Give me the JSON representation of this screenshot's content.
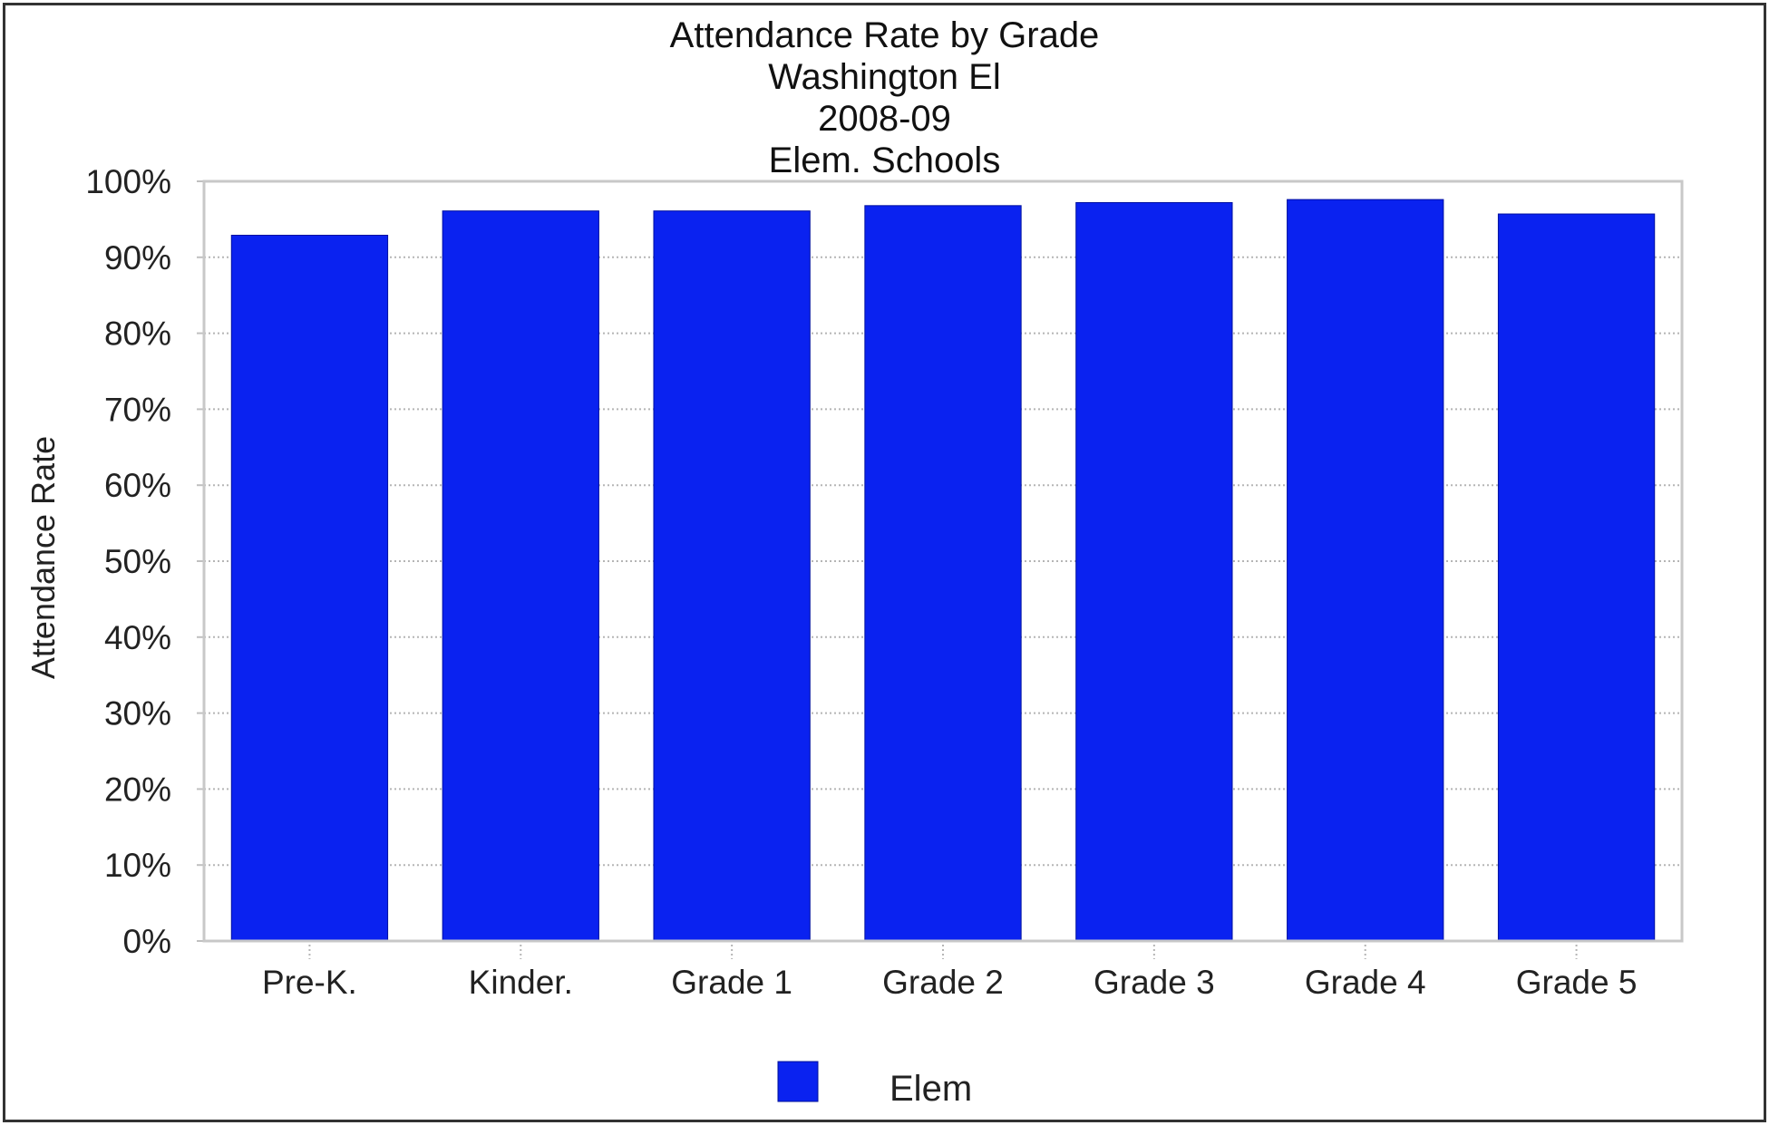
{
  "chart_data": {
    "type": "bar",
    "title": "Attendance Rate by Grade",
    "subtitles": [
      "Washington El",
      "2008-09",
      "Elem. Schools"
    ],
    "ylabel": "Attendance Rate",
    "xlabel": "",
    "categories": [
      "Pre-K.",
      "Kinder.",
      "Grade 1",
      "Grade 2",
      "Grade 3",
      "Grade 4",
      "Grade 5"
    ],
    "series": [
      {
        "name": "Elem",
        "color": "#0a22f0",
        "values": [
          92.9,
          96.1,
          96.1,
          96.8,
          97.2,
          97.6,
          95.7
        ]
      }
    ],
    "ylim": [
      0,
      100
    ],
    "yticks": [
      0,
      10,
      20,
      30,
      40,
      50,
      60,
      70,
      80,
      90,
      100
    ],
    "ytick_suffix": "%",
    "grid": true,
    "legend": "bottom-center"
  }
}
